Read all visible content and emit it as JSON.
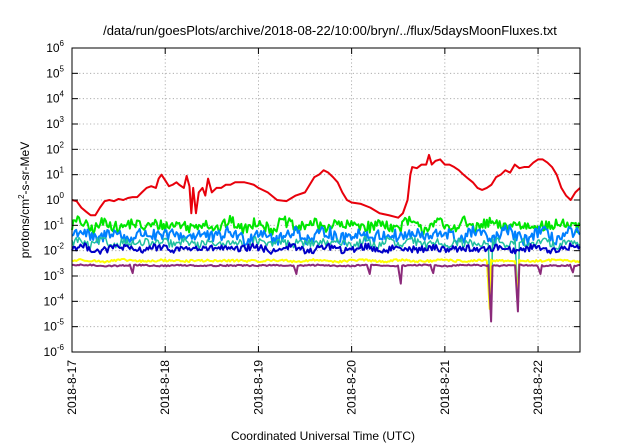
{
  "chart_data": {
    "type": "line",
    "title": "/data/run/goesPlots/archive/2018-08-22/10:00/bryn/../flux/5daysMoonFluxes.txt",
    "xlabel": "Coordinated Universal Time (UTC)",
    "ylabel": {
      "base": "protons/cm",
      "sup": "2",
      "rest": "-s-sr-MeV"
    },
    "yscale": "log",
    "ylim": [
      1e-06,
      1000000.0
    ],
    "xlim": [
      0,
      5.45
    ],
    "grid": true,
    "legend": "none",
    "x_unit": "days since 2018-8-17 00:00 UTC",
    "x_ticks": [
      {
        "label": "2018-8-17",
        "value": 0
      },
      {
        "label": "2018-8-18",
        "value": 1
      },
      {
        "label": "2018-8-19",
        "value": 2
      },
      {
        "label": "2018-8-20",
        "value": 3
      },
      {
        "label": "2018-8-21",
        "value": 4
      },
      {
        "label": "2018-8-22",
        "value": 5
      }
    ],
    "y_ticks": [
      {
        "base": "10",
        "exp": "-6",
        "value": -6
      },
      {
        "base": "10",
        "exp": "-5",
        "value": -5
      },
      {
        "base": "10",
        "exp": "-4",
        "value": -4
      },
      {
        "base": "10",
        "exp": "-3",
        "value": -3
      },
      {
        "base": "10",
        "exp": "-2",
        "value": -2
      },
      {
        "base": "10",
        "exp": "-1",
        "value": -1
      },
      {
        "base": "10",
        "exp": "0",
        "value": 0
      },
      {
        "base": "10",
        "exp": "1",
        "value": 1
      },
      {
        "base": "10",
        "exp": "2",
        "value": 2
      },
      {
        "base": "10",
        "exp": "3",
        "value": 3
      },
      {
        "base": "10",
        "exp": "4",
        "value": 4
      },
      {
        "base": "10",
        "exp": "5",
        "value": 5
      },
      {
        "base": "10",
        "exp": "6",
        "value": 6
      }
    ],
    "series": [
      {
        "color": "#e8000b",
        "width": 2,
        "points": [
          [
            0.0,
            1.0
          ],
          [
            0.05,
            0.9
          ],
          [
            0.1,
            0.5
          ],
          [
            0.15,
            0.35
          ],
          [
            0.2,
            0.25
          ],
          [
            0.25,
            0.25
          ],
          [
            0.3,
            0.5
          ],
          [
            0.35,
            0.9
          ],
          [
            0.4,
            1.0
          ],
          [
            0.45,
            0.9
          ],
          [
            0.5,
            1.1
          ],
          [
            0.55,
            1.0
          ],
          [
            0.6,
            1.2
          ],
          [
            0.65,
            1.3
          ],
          [
            0.7,
            1.3
          ],
          [
            0.75,
            2.0
          ],
          [
            0.8,
            3.0
          ],
          [
            0.85,
            3.5
          ],
          [
            0.9,
            3.0
          ],
          [
            0.93,
            7.0
          ],
          [
            0.96,
            10.0
          ],
          [
            1.0,
            6.0
          ],
          [
            1.04,
            3.5
          ],
          [
            1.08,
            4.0
          ],
          [
            1.12,
            5.0
          ],
          [
            1.15,
            4.0
          ],
          [
            1.2,
            3.0
          ],
          [
            1.23,
            9.0
          ],
          [
            1.26,
            3.5
          ],
          [
            1.28,
            0.3
          ],
          [
            1.3,
            3.0
          ],
          [
            1.33,
            0.3
          ],
          [
            1.36,
            2.0
          ],
          [
            1.4,
            3.0
          ],
          [
            1.43,
            1.5
          ],
          [
            1.46,
            7.0
          ],
          [
            1.5,
            2.0
          ],
          [
            1.55,
            3.0
          ],
          [
            1.6,
            3.0
          ],
          [
            1.65,
            4.0
          ],
          [
            1.7,
            4.0
          ],
          [
            1.75,
            5.0
          ],
          [
            1.8,
            5.0
          ],
          [
            1.85,
            5.0
          ],
          [
            1.9,
            4.5
          ],
          [
            1.95,
            4.0
          ],
          [
            2.0,
            3.0
          ],
          [
            2.1,
            2.0
          ],
          [
            2.2,
            1.0
          ],
          [
            2.3,
            0.9
          ],
          [
            2.4,
            1.5
          ],
          [
            2.5,
            2.0
          ],
          [
            2.55,
            4.0
          ],
          [
            2.6,
            8.0
          ],
          [
            2.65,
            10.0
          ],
          [
            2.7,
            15.0
          ],
          [
            2.75,
            12.0
          ],
          [
            2.8,
            8.0
          ],
          [
            2.85,
            5.0
          ],
          [
            2.9,
            2.0
          ],
          [
            2.95,
            1.0
          ],
          [
            3.0,
            0.8
          ],
          [
            3.1,
            0.7
          ],
          [
            3.2,
            0.5
          ],
          [
            3.3,
            0.3
          ],
          [
            3.4,
            0.25
          ],
          [
            3.5,
            0.2
          ],
          [
            3.55,
            0.3
          ],
          [
            3.6,
            1.0
          ],
          [
            3.63,
            10.0
          ],
          [
            3.65,
            20.0
          ],
          [
            3.7,
            18.0
          ],
          [
            3.75,
            25.0
          ],
          [
            3.8,
            25.0
          ],
          [
            3.83,
            60.0
          ],
          [
            3.86,
            25.0
          ],
          [
            3.9,
            35.0
          ],
          [
            3.95,
            40.0
          ],
          [
            4.0,
            25.0
          ],
          [
            4.05,
            25.0
          ],
          [
            4.1,
            20.0
          ],
          [
            4.15,
            15.0
          ],
          [
            4.2,
            10.0
          ],
          [
            4.25,
            7.0
          ],
          [
            4.3,
            5.0
          ],
          [
            4.35,
            3.0
          ],
          [
            4.4,
            2.5
          ],
          [
            4.45,
            3.0
          ],
          [
            4.5,
            4.0
          ],
          [
            4.55,
            8.0
          ],
          [
            4.6,
            10.0
          ],
          [
            4.65,
            15.0
          ],
          [
            4.7,
            12.0
          ],
          [
            4.75,
            25.0
          ],
          [
            4.8,
            18.0
          ],
          [
            4.85,
            20.0
          ],
          [
            4.9,
            20.0
          ],
          [
            4.95,
            30.0
          ],
          [
            5.0,
            40.0
          ],
          [
            5.05,
            40.0
          ],
          [
            5.1,
            30.0
          ],
          [
            5.15,
            20.0
          ],
          [
            5.2,
            10.0
          ],
          [
            5.25,
            3.0
          ],
          [
            5.3,
            1.5
          ],
          [
            5.35,
            1.0
          ],
          [
            5.4,
            2.0
          ],
          [
            5.45,
            3.0
          ]
        ]
      },
      {
        "color": "#00e600",
        "width": 2,
        "base": 0.1,
        "amp": 0.5,
        "freq": 7.3,
        "dips": []
      },
      {
        "color": "#0080ff",
        "width": 2,
        "base": 0.04,
        "amp": 0.55,
        "freq": 6.1,
        "dips": []
      },
      {
        "color": "#20c0a0",
        "width": 1.5,
        "base": 0.02,
        "amp": 0.35,
        "freq": 8.4,
        "dips": [
          [
            4.5,
            3e-05
          ],
          [
            4.78,
            8e-05
          ]
        ]
      },
      {
        "color": "#0000c8",
        "width": 2,
        "base": 0.012,
        "amp": 0.3,
        "freq": 5.3,
        "dips": []
      },
      {
        "color": "#ffff00",
        "width": 2,
        "base": 0.004,
        "amp": 0.1,
        "freq": 4.7,
        "dips": [
          [
            4.48,
            5e-05
          ],
          [
            4.79,
            0.0001
          ]
        ]
      },
      {
        "color": "#8b2a7a",
        "width": 2,
        "base": 0.0026,
        "amp": 0.06,
        "freq": 3.9,
        "dips": [
          [
            0.65,
            0.0013
          ],
          [
            2.4,
            0.0012
          ],
          [
            3.2,
            0.0012
          ],
          [
            3.87,
            0.0013
          ],
          [
            3.53,
            0.0005
          ],
          [
            4.5,
            1.6e-05
          ],
          [
            4.78,
            4e-05
          ],
          [
            5.03,
            0.0012
          ],
          [
            5.37,
            0.0014
          ]
        ]
      }
    ]
  }
}
